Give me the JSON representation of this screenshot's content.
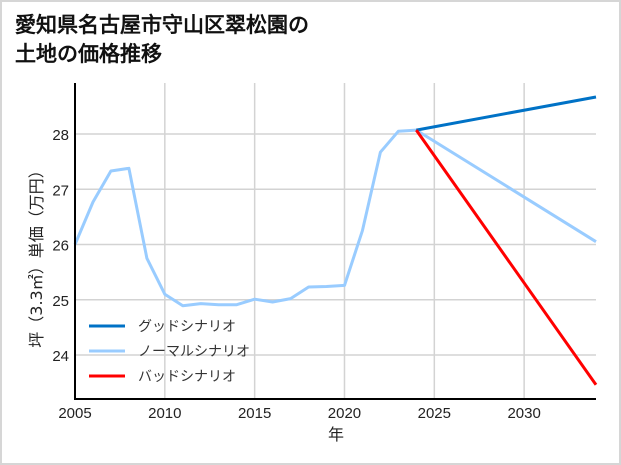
{
  "title": "愛知県名古屋市守山区翠松園の\n土地の価格推移",
  "chart_data": {
    "type": "line",
    "title": "愛知県名古屋市守山区翠松園の土地の価格推移",
    "xlabel": "年",
    "ylabel": "坪（3.3㎡）単価（万円）",
    "xlim": [
      2005,
      2034
    ],
    "ylim": [
      23.45,
      28.9
    ],
    "xticks": [
      2005,
      2010,
      2015,
      2020,
      2025,
      2030
    ],
    "yticks": [
      24,
      25,
      26,
      27,
      28
    ],
    "grid": true,
    "legend_position": "lower left",
    "series": [
      {
        "name": "グッドシナリオ",
        "color": "#0072c6",
        "x": [
          2024,
          2034
        ],
        "values": [
          28.07,
          28.67
        ]
      },
      {
        "name": "ノーマルシナリオ",
        "color": "#99ccff",
        "x": [
          2005,
          2006,
          2007,
          2008,
          2009,
          2010,
          2011,
          2012,
          2013,
          2014,
          2015,
          2016,
          2017,
          2018,
          2019,
          2020,
          2021,
          2022,
          2023,
          2024,
          2034
        ],
        "values": [
          26.0,
          26.77,
          27.33,
          27.38,
          25.75,
          25.1,
          24.89,
          24.93,
          24.91,
          24.91,
          25.01,
          24.96,
          25.02,
          25.23,
          25.24,
          25.26,
          26.25,
          27.67,
          28.05,
          28.07,
          26.05
        ]
      },
      {
        "name": "バッドシナリオ",
        "color": "#ff0000",
        "x": [
          2024,
          2034
        ],
        "values": [
          28.07,
          23.46
        ]
      }
    ]
  }
}
